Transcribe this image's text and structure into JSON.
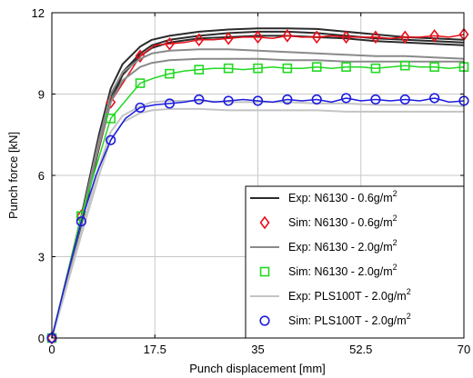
{
  "chart_data": {
    "type": "line",
    "title": "",
    "xlabel": "Punch displacement [mm]",
    "ylabel": "Punch force [kN]",
    "xlim": [
      0,
      70
    ],
    "ylim": [
      0,
      12
    ],
    "xticks": [
      0,
      17.5,
      35,
      52.5,
      70
    ],
    "xtick_labels": [
      "0",
      "17.5",
      "35",
      "52.5",
      "70"
    ],
    "yticks": [
      0,
      3,
      6,
      9,
      12
    ],
    "ytick_labels": [
      "0",
      "3",
      "6",
      "9",
      "12"
    ],
    "grid": true,
    "legend_position": "lower-right",
    "series": [
      {
        "name_main": "Exp: N6130 - 0.6g/m",
        "name_sup": "2",
        "color": "#2b2b2b",
        "style": "line-group",
        "curves": [
          {
            "x": [
              0,
              2,
              5,
              8,
              10,
              12,
              15,
              17,
              20,
              25,
              30,
              35,
              40,
              45,
              50,
              55,
              60,
              65,
              70
            ],
            "y": [
              0,
              1.7,
              4.4,
              7.2,
              8.9,
              9.8,
              10.5,
              10.8,
              11.0,
              11.15,
              11.25,
              11.3,
              11.3,
              11.25,
              11.15,
              11.05,
              11.0,
              10.95,
              10.9
            ]
          },
          {
            "x": [
              0,
              2,
              5,
              8,
              10,
              12,
              15,
              17,
              20,
              25,
              30,
              35,
              40,
              45,
              50,
              55,
              60,
              65,
              70
            ],
            "y": [
              0,
              1.7,
              4.5,
              7.5,
              9.2,
              10.1,
              10.75,
              11.0,
              11.15,
              11.3,
              11.38,
              11.42,
              11.42,
              11.4,
              11.3,
              11.2,
              11.1,
              11.05,
              11.0
            ]
          },
          {
            "x": [
              0,
              2,
              5,
              8,
              10,
              12,
              15,
              17,
              20,
              25,
              30,
              35,
              40,
              45,
              50,
              55,
              60,
              65,
              70
            ],
            "y": [
              0,
              1.6,
              4.2,
              7.0,
              8.7,
              9.7,
              10.4,
              10.7,
              10.9,
              11.05,
              11.1,
              11.15,
              11.15,
              11.1,
              11.05,
              10.95,
              10.9,
              10.85,
              10.8
            ]
          }
        ]
      },
      {
        "name_main": "Sim: N6130 - 0.6g/m",
        "name_sup": "2",
        "color": "#e8101a",
        "style": "line-marker",
        "marker": "diamond",
        "x": [
          0,
          5,
          10,
          15,
          17.5,
          20,
          22.5,
          25,
          27.5,
          30,
          32.5,
          35,
          37.5,
          40,
          42.5,
          45,
          47.5,
          50,
          52.5,
          55,
          57.5,
          60,
          62.5,
          65,
          67.5,
          70
        ],
        "y": [
          0,
          4.5,
          8.7,
          10.4,
          10.8,
          10.85,
          10.9,
          11.0,
          11.0,
          11.05,
          11.1,
          11.1,
          11.05,
          11.15,
          11.1,
          11.1,
          11.15,
          11.1,
          11.1,
          11.1,
          11.05,
          11.1,
          11.1,
          11.15,
          11.1,
          11.2
        ],
        "marker_x": [
          0,
          5,
          10,
          15,
          20,
          25,
          30,
          35,
          40,
          45,
          50,
          55,
          60,
          65,
          70
        ],
        "marker_y": [
          0,
          4.5,
          8.7,
          10.4,
          10.85,
          11.0,
          11.05,
          11.1,
          11.15,
          11.1,
          11.1,
          11.1,
          11.1,
          11.15,
          11.2
        ]
      },
      {
        "name_main": "Exp: N6130 - 2.0g/m",
        "name_sup": "2",
        "color": "#8a8a8a",
        "style": "line-group",
        "curves": [
          {
            "x": [
              0,
              2,
              5,
              8,
              10,
              12,
              15,
              17,
              20,
              25,
              30,
              35,
              40,
              45,
              50,
              55,
              60,
              65,
              70
            ],
            "y": [
              0,
              1.7,
              4.4,
              7.3,
              9.0,
              9.8,
              10.3,
              10.5,
              10.6,
              10.65,
              10.65,
              10.6,
              10.55,
              10.5,
              10.45,
              10.4,
              10.4,
              10.35,
              10.3
            ]
          },
          {
            "x": [
              0,
              2,
              5,
              8,
              10,
              12,
              15,
              17,
              20,
              25,
              30,
              35,
              40,
              45,
              50,
              55,
              60,
              65,
              70
            ],
            "y": [
              0,
              1.6,
              4.3,
              7.1,
              8.7,
              9.5,
              10.0,
              10.15,
              10.25,
              10.3,
              10.3,
              10.3,
              10.25,
              10.25,
              10.2,
              10.2,
              10.2,
              10.2,
              10.2
            ]
          }
        ]
      },
      {
        "name_main": "Sim: N6130 - 2.0g/m",
        "name_sup": "2",
        "color": "#22d822",
        "style": "line-marker",
        "marker": "square",
        "x": [
          0,
          5,
          10,
          15,
          17.5,
          20,
          22.5,
          25,
          27.5,
          30,
          32.5,
          35,
          37.5,
          40,
          42.5,
          45,
          47.5,
          50,
          52.5,
          55,
          57.5,
          60,
          62.5,
          65,
          67.5,
          70
        ],
        "y": [
          0,
          4.5,
          8.1,
          9.4,
          9.6,
          9.75,
          9.85,
          9.9,
          9.95,
          9.95,
          9.9,
          9.95,
          10.0,
          9.95,
          9.95,
          10.0,
          9.95,
          10.0,
          10.0,
          9.95,
          10.0,
          10.05,
          10.0,
          10.0,
          9.95,
          10.0
        ],
        "marker_x": [
          0,
          5,
          10,
          15,
          20,
          25,
          30,
          35,
          40,
          45,
          50,
          55,
          60,
          65,
          70
        ],
        "marker_y": [
          0,
          4.5,
          8.1,
          9.4,
          9.75,
          9.9,
          9.95,
          9.95,
          9.95,
          10.0,
          10.0,
          9.95,
          10.05,
          10.0,
          10.0
        ]
      },
      {
        "name_main": "Exp: PLS100T - 2.0g/m",
        "name_sup": "2",
        "color": "#c4c4c4",
        "style": "line-group",
        "curves": [
          {
            "x": [
              0,
              2,
              5,
              8,
              10,
              12,
              15,
              17,
              20,
              25,
              30,
              35,
              40,
              45,
              50,
              55,
              60,
              65,
              70
            ],
            "y": [
              0,
              1.5,
              3.9,
              6.3,
              7.6,
              8.2,
              8.55,
              8.7,
              8.75,
              8.75,
              8.7,
              8.7,
              8.7,
              8.65,
              8.65,
              8.6,
              8.6,
              8.6,
              8.55
            ]
          },
          {
            "x": [
              0,
              2,
              5,
              8,
              10,
              12,
              15,
              17,
              20,
              25,
              30,
              35,
              40,
              45,
              50,
              55,
              60,
              65,
              70
            ],
            "y": [
              0,
              1.5,
              3.8,
              6.0,
              7.3,
              7.95,
              8.3,
              8.4,
              8.45,
              8.45,
              8.4,
              8.4,
              8.4,
              8.4,
              8.35,
              8.35,
              8.35,
              8.35,
              8.35
            ]
          }
        ]
      },
      {
        "name_main": "Sim: PLS100T - 2.0g/m",
        "name_sup": "2",
        "color": "#1c1ce0",
        "style": "line-marker",
        "marker": "circle",
        "x": [
          0,
          2.5,
          5,
          7.5,
          10,
          12.5,
          15,
          17.5,
          20,
          22.5,
          25,
          27.5,
          30,
          32.5,
          35,
          37.5,
          40,
          42.5,
          45,
          47.5,
          50,
          52.5,
          55,
          57.5,
          60,
          62.5,
          65,
          67.5,
          70
        ],
        "y": [
          0,
          2.2,
          4.3,
          6.0,
          7.3,
          8.1,
          8.5,
          8.6,
          8.65,
          8.7,
          8.8,
          8.7,
          8.75,
          8.8,
          8.75,
          8.7,
          8.8,
          8.75,
          8.8,
          8.7,
          8.85,
          8.75,
          8.8,
          8.75,
          8.8,
          8.75,
          8.85,
          8.7,
          8.75
        ],
        "marker_x": [
          0,
          5,
          10,
          15,
          20,
          25,
          30,
          35,
          40,
          45,
          50,
          55,
          60,
          65,
          70
        ],
        "marker_y": [
          0,
          4.3,
          7.3,
          8.5,
          8.65,
          8.8,
          8.75,
          8.75,
          8.8,
          8.8,
          8.85,
          8.8,
          8.8,
          8.85,
          8.75
        ]
      }
    ]
  }
}
